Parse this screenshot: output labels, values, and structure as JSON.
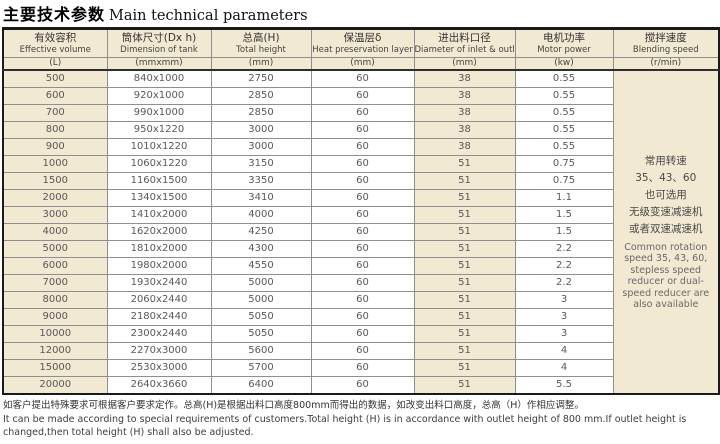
{
  "title": {
    "zh": "主要技术参数",
    "en": "Main technical parameters"
  },
  "colors": {
    "beige": "#f2e9d3",
    "grid": "#8f8f8f",
    "outer_border": "#1a1a1a",
    "header_text": "#333333",
    "data_text": "#595959"
  },
  "table": {
    "columns": [
      {
        "zh": "有效容积",
        "en": "Effective volume",
        "unit": "(L)"
      },
      {
        "zh": "筒体尺寸(Dx h)",
        "en": "Dimension of tank",
        "unit": "(mmxmm)"
      },
      {
        "zh": "总高(H)",
        "en": "Total height",
        "unit": "(mm)"
      },
      {
        "zh": "保温层δ",
        "en": "Heat preservation layer",
        "unit": "(mm)"
      },
      {
        "zh": "进出料口径",
        "en": "Diameter of inlet & outlet",
        "unit": "(mm)"
      },
      {
        "zh": "电机功率",
        "en": "Motor power",
        "unit": "(kw)"
      },
      {
        "zh": "搅拌速度",
        "en": "Blending speed",
        "unit": "(r/min)"
      }
    ],
    "rows": [
      [
        "500",
        "840x1000",
        "2750",
        "60",
        "38",
        "0.55"
      ],
      [
        "600",
        "920x1000",
        "2850",
        "60",
        "38",
        "0.55"
      ],
      [
        "700",
        "990x1000",
        "2850",
        "60",
        "38",
        "0.55"
      ],
      [
        "800",
        "950x1220",
        "3000",
        "60",
        "38",
        "0.55"
      ],
      [
        "900",
        "1010x1220",
        "3000",
        "60",
        "38",
        "0.55"
      ],
      [
        "1000",
        "1060x1220",
        "3150",
        "60",
        "51",
        "0.75"
      ],
      [
        "1500",
        "1160x1500",
        "3350",
        "60",
        "51",
        "0.75"
      ],
      [
        "2000",
        "1340x1500",
        "3410",
        "60",
        "51",
        "1.1"
      ],
      [
        "3000",
        "1410x2000",
        "4000",
        "60",
        "51",
        "1.5"
      ],
      [
        "4000",
        "1620x2000",
        "4250",
        "60",
        "51",
        "1.5"
      ],
      [
        "5000",
        "1810x2000",
        "4300",
        "60",
        "51",
        "2.2"
      ],
      [
        "6000",
        "1980x2000",
        "4550",
        "60",
        "51",
        "2.2"
      ],
      [
        "7000",
        "1930x2440",
        "5000",
        "60",
        "51",
        "2.2"
      ],
      [
        "8000",
        "2060x2440",
        "5000",
        "60",
        "51",
        "3"
      ],
      [
        "9000",
        "2180x2440",
        "5050",
        "60",
        "51",
        "3"
      ],
      [
        "10000",
        "2300x2440",
        "5050",
        "60",
        "51",
        "3"
      ],
      [
        "12000",
        "2270x3000",
        "5600",
        "60",
        "51",
        "4"
      ],
      [
        "15000",
        "2530x3000",
        "5700",
        "60",
        "51",
        "4"
      ],
      [
        "20000",
        "2640x3660",
        "6400",
        "60",
        "51",
        "5.5"
      ]
    ],
    "blending_speed_note": {
      "zh_lines": [
        "常用转速",
        "35、43、60",
        "也可选用",
        "无级变速减速机",
        "或者双速减速机"
      ],
      "en": "Common rotation speed 35, 43, 60, stepless speed reducer or dual-speed reducer are also available"
    }
  },
  "footer": {
    "zh": "如客户提出特殊要求可根据客户要求定作。总高(H)是根据出料口高度800mm而得出的数据，如改变出料口高度，总高（H）作相应调整。",
    "en": "It can be made according to special requirements of customers.Total height (H) is in accordance with outlet height of 800 mm.If outlet height is changed,then total height (H) shall also be adjusted."
  }
}
